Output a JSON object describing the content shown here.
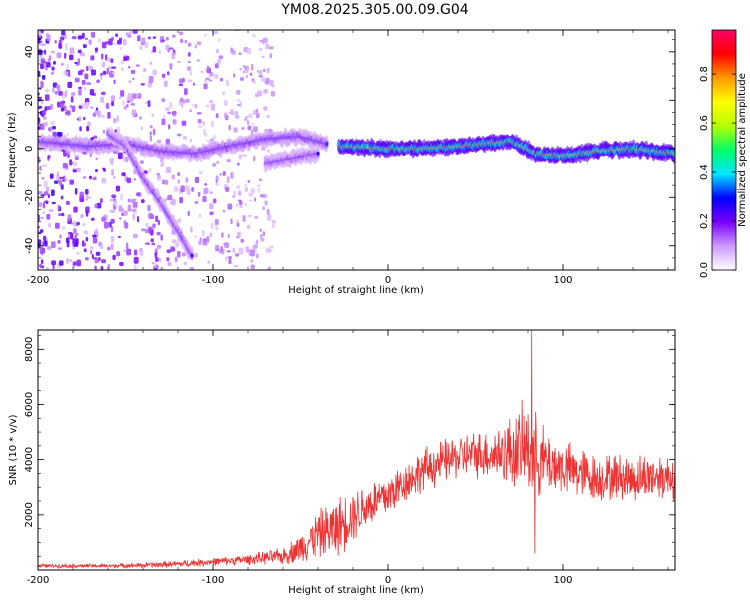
{
  "figure_title": "YM08.2025.305.00.09.G04",
  "chart_data": [
    {
      "type": "heatmap",
      "id": "spectrogram",
      "xlabel": "Height of straight line (km)",
      "ylabel": "Frequency (Hz)",
      "xlim": [
        -200,
        164
      ],
      "ylim": [
        -50,
        49
      ],
      "x_ticks": [
        -200,
        -100,
        0,
        100
      ],
      "y_ticks": [
        -40,
        -20,
        0,
        20,
        40
      ],
      "colorbar": {
        "label": "Normalized spectral amplitude",
        "range": [
          0,
          0.98
        ],
        "ticks": [
          0.0,
          0.2,
          0.4,
          0.6,
          0.8
        ],
        "colors": [
          "#ffffff",
          "#cc99ff",
          "#7a00ff",
          "#0000ff",
          "#00e5ff",
          "#00ff66",
          "#b6ff00",
          "#ffff00",
          "#ff9900",
          "#ff0000",
          "#ff0066"
        ]
      },
      "ridges": [
        {
          "name": "main ridge (strong, right part)",
          "points": [
            [
              -28,
              1
            ],
            [
              0,
              0
            ],
            [
              20,
              0
            ],
            [
              40,
              1
            ],
            [
              55,
              2
            ],
            [
              70,
              3
            ],
            [
              85,
              -2
            ],
            [
              100,
              -3
            ],
            [
              120,
              -1
            ],
            [
              140,
              0
            ],
            [
              164,
              -2
            ]
          ],
          "amplitude": 0.9
        },
        {
          "name": "main ridge (weak, left part)",
          "points": [
            [
              -200,
              3
            ],
            [
              -170,
              1
            ],
            [
              -150,
              2
            ],
            [
              -130,
              -1
            ],
            [
              -110,
              -2
            ],
            [
              -90,
              1
            ],
            [
              -70,
              4
            ],
            [
              -50,
              5
            ],
            [
              -35,
              2
            ]
          ],
          "amplitude": 0.35
        },
        {
          "name": "descending branch",
          "points": [
            [
              -160,
              6
            ],
            [
              -150,
              1
            ],
            [
              -140,
              -12
            ],
            [
              -130,
              -22
            ],
            [
              -120,
              -34
            ],
            [
              -112,
              -44
            ]
          ],
          "amplitude": 0.3
        },
        {
          "name": "lower branch",
          "points": [
            [
              -70,
              -6
            ],
            [
              -55,
              -4
            ],
            [
              -40,
              -2
            ]
          ],
          "amplitude": 0.3
        }
      ]
    },
    {
      "type": "line",
      "id": "snr",
      "xlabel": "Height of straight line (km)",
      "ylabel": "SNR (10 * v/v)",
      "xlim": [
        -200,
        164
      ],
      "ylim": [
        0,
        8700
      ],
      "x_ticks": [
        -200,
        -100,
        0,
        100
      ],
      "y_ticks": [
        2000,
        4000,
        6000,
        8000
      ],
      "color": "#ee3333",
      "series": [
        {
          "name": "SNR",
          "x": [
            -200,
            -180,
            -160,
            -140,
            -120,
            -100,
            -80,
            -60,
            -50,
            -40,
            -30,
            -20,
            -10,
            0,
            10,
            20,
            30,
            40,
            50,
            60,
            70,
            80,
            90,
            100,
            110,
            120,
            130,
            140,
            150,
            164
          ],
          "values": [
            150,
            150,
            150,
            170,
            220,
            300,
            380,
            500,
            800,
            1300,
            1500,
            2000,
            2400,
            2700,
            3200,
            3600,
            3900,
            4100,
            4200,
            4200,
            4300,
            4400,
            3900,
            3700,
            3500,
            3300,
            3400,
            3300,
            3400,
            3400
          ],
          "noise_amplitude": [
            60,
            60,
            60,
            80,
            100,
            120,
            150,
            250,
            450,
            700,
            900,
            800,
            700,
            700,
            600,
            650,
            650,
            650,
            700,
            750,
            1100,
            1400,
            1000,
            800,
            800,
            700,
            700,
            700,
            700,
            700
          ]
        }
      ],
      "annotations": [
        {
          "label": "peak",
          "x": 82,
          "y": 8700
        },
        {
          "label": "dip",
          "x": 84,
          "y": 600
        }
      ]
    }
  ]
}
